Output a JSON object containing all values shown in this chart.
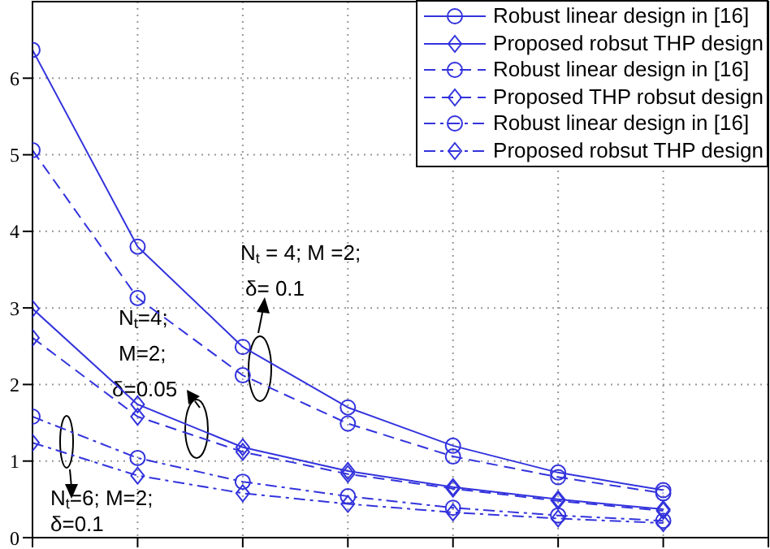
{
  "chart_data": {
    "type": "line",
    "categories": [
      null,
      null,
      null,
      null,
      null,
      null,
      null
    ],
    "ylim": [
      0,
      7
    ],
    "yticks": [
      0,
      1,
      2,
      3,
      4,
      5,
      6
    ],
    "tick_labels": "y",
    "grid": true,
    "legend": "top right",
    "series": [
      {
        "name": "Robust linear design in [16]",
        "color": "#3333dd",
        "marker": "circle",
        "line_style": "solid",
        "values": [
          6.37,
          3.8,
          2.49,
          1.7,
          1.2,
          0.85,
          0.62
        ]
      },
      {
        "name": "Proposed robsut THP design",
        "color": "#3333dd",
        "marker": "diamond",
        "line_style": "solid",
        "values": [
          2.99,
          1.74,
          1.18,
          0.87,
          0.66,
          0.5,
          0.37
        ]
      },
      {
        "name": "Robust linear design in [16]",
        "color": "#3333dd",
        "marker": "circle",
        "line_style": "dashed",
        "values": [
          5.06,
          3.13,
          2.12,
          1.49,
          1.06,
          0.79,
          0.58
        ]
      },
      {
        "name": "Proposed THP robsut design",
        "color": "#3333dd",
        "marker": "diamond",
        "line_style": "dashed",
        "values": [
          2.61,
          1.58,
          1.12,
          0.83,
          0.64,
          0.48,
          0.35
        ]
      },
      {
        "name": "Robust linear design in [16]",
        "color": "#3333dd",
        "marker": "circle",
        "line_style": "dashdot",
        "values": [
          1.58,
          1.04,
          0.73,
          0.54,
          0.39,
          0.29,
          0.22
        ]
      },
      {
        "name": "Proposed robsut THP design",
        "color": "#3333dd",
        "marker": "diamond",
        "line_style": "dashdot",
        "values": [
          1.24,
          0.81,
          0.58,
          0.44,
          0.33,
          0.25,
          0.19
        ]
      }
    ],
    "annotations": [
      "N$_{t}$ = 4; M =2;",
      "δ= 0.1",
      "N$_{t}$=4;",
      "M=2;",
      "δ=0.05",
      "N$_{t}$=6; M=2;",
      "δ=0.1"
    ]
  }
}
